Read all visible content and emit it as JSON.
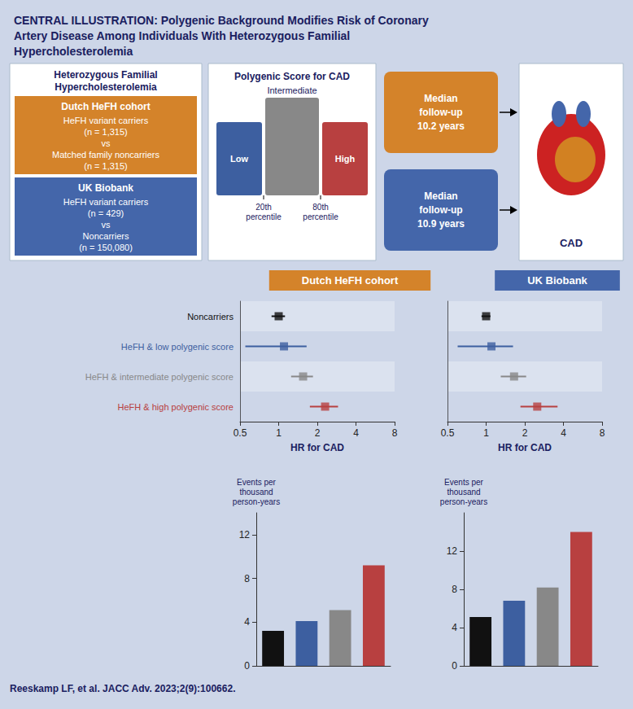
{
  "title": "CENTRAL ILLUSTRATION: Polygenic Background Modifies Risk of Coronary\nArtery Disease Among Individuals With Heterozygous Familial\nHypercholesterolemia",
  "annotations": [
    "Heterozygous Familial\nHypercholesterolemia",
    "Dutch HeFH cohort",
    "HeFH variant carriers\n(n = 1,315)\nvs\nMatched family noncarriers\n(n = 1,315)",
    "UK Biobank",
    "HeFH variant carriers\n(n = 429)\nvs\nNoncarriers\n(n = 150,080)",
    "Polygenic Score for CAD",
    "Intermediate",
    "Low",
    "High",
    "20th\npercentile",
    "80th\npercentile",
    "Median\nfollow-up\n10.2 years",
    "Median\nfollow-up\n10.9 years",
    "CAD",
    "Reeskamp LF, et al. JACC Adv. 2023;2(9):100662."
  ],
  "chart_data": [
    {
      "type": "forest",
      "title": "Dutch HeFH cohort",
      "color": "#d4832a",
      "categories": [
        "Noncarriers",
        "HeFH & low polygenic score",
        "HeFH & intermediate polygenic score",
        "HeFH & high polygenic score"
      ],
      "values": [
        1.0,
        1.1,
        1.55,
        2.3
      ],
      "ci_low": [
        0.88,
        0.55,
        1.25,
        1.75
      ],
      "ci_high": [
        1.12,
        1.65,
        1.85,
        2.9
      ],
      "colors": [
        "#111111",
        "#3d5fa0",
        "#888888",
        "#b84040"
      ],
      "log": "x",
      "xlim": [
        0.5,
        8
      ],
      "xticks": [
        0.5,
        1,
        2,
        4,
        8
      ],
      "xlabel": "HR for CAD"
    },
    {
      "type": "forest",
      "title": "UK Biobank",
      "color": "#4466aa",
      "categories": [
        "Noncarriers",
        "HeFH & low polygenic score",
        "HeFH & intermediate polygenic score",
        "HeFH & high polygenic score"
      ],
      "values": [
        1.0,
        1.1,
        1.65,
        2.5
      ],
      "ci_low": [
        0.92,
        0.6,
        1.3,
        1.85
      ],
      "ci_high": [
        1.08,
        1.62,
        2.05,
        3.6
      ],
      "colors": [
        "#111111",
        "#3d5fa0",
        "#888888",
        "#b84040"
      ],
      "log": "x",
      "xlim": [
        0.5,
        8
      ],
      "xticks": [
        0.5,
        1,
        2,
        4,
        8
      ],
      "xlabel": "HR for CAD",
      "tick_labels": "x"
    },
    {
      "type": "bar",
      "categories": [
        null,
        null,
        null,
        null
      ],
      "values": [
        3.2,
        4.1,
        5.1,
        9.2
      ],
      "colors": [
        "#111111",
        "#3d5fa0",
        "#888888",
        "#b84040"
      ],
      "ylim": [
        0,
        14
      ],
      "yticks": [
        0,
        4,
        8,
        12
      ],
      "ylabel": "Events per\nthousand\nperson-years",
      "tick_labels": "y"
    },
    {
      "type": "bar",
      "categories": [
        null,
        null,
        null,
        null
      ],
      "values": [
        5.1,
        6.8,
        8.2,
        14.0
      ],
      "colors": [
        "#111111",
        "#3d5fa0",
        "#888888",
        "#b84040"
      ],
      "ylim": [
        0,
        16
      ],
      "yticks": [
        0,
        4,
        8,
        12
      ],
      "ylabel": "Events per\nthousand\nperson-years",
      "tick_labels": "y"
    }
  ]
}
